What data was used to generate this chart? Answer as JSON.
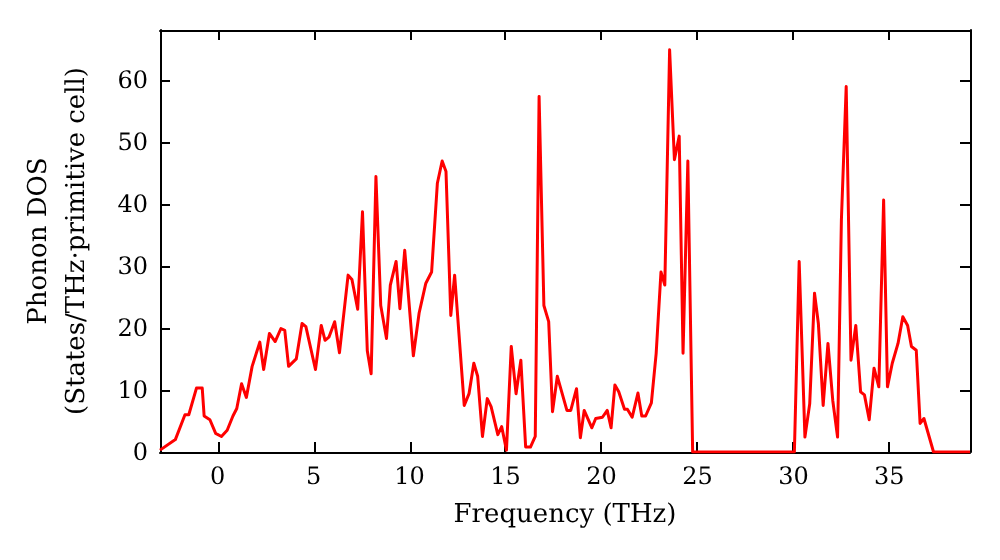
{
  "chart_data": {
    "type": "line",
    "xlabel": "Frequency (THz)",
    "ylabel": "Phonon DOS\n(States/THz·primitive cell)",
    "xlim": [
      -3,
      39.2
    ],
    "xticks": [
      0,
      5,
      10,
      15,
      20,
      25,
      30,
      35
    ],
    "ylim": [
      0,
      68
    ],
    "yticks": [
      0,
      10,
      20,
      30,
      40,
      50,
      60
    ],
    "grid": false,
    "marker": "none",
    "line_style": "solid",
    "series": [
      {
        "color": "#ff0000",
        "x": [
          -3,
          -2.2,
          -1.7,
          -1.5,
          -1.1,
          -0.8,
          -0.7,
          -0.4,
          -0.1,
          0.2,
          0.5,
          0.8,
          1.0,
          1.25,
          1.5,
          1.8,
          2.2,
          2.4,
          2.7,
          3.0,
          3.3,
          3.5,
          3.7,
          4.1,
          4.4,
          4.6,
          5.1,
          5.4,
          5.6,
          5.8,
          6.1,
          6.35,
          6.8,
          7.0,
          7.3,
          7.55,
          7.8,
          8.0,
          8.25,
          8.5,
          8.8,
          9.0,
          9.3,
          9.5,
          9.75,
          10.2,
          10.5,
          10.85,
          11.15,
          11.45,
          11.7,
          11.9,
          12.15,
          12.35,
          12.85,
          13.1,
          13.35,
          13.55,
          13.8,
          14.05,
          14.25,
          14.6,
          14.8,
          15.05,
          15.3,
          15.55,
          15.8,
          16.05,
          16.3,
          16.55,
          16.75,
          17.0,
          17.25,
          17.45,
          17.7,
          18.2,
          18.4,
          18.7,
          18.9,
          19.1,
          19.5,
          19.7,
          20.05,
          20.3,
          20.5,
          20.7,
          20.9,
          21.2,
          21.35,
          21.6,
          21.9,
          22.1,
          22.3,
          22.6,
          22.85,
          23.1,
          23.3,
          23.55,
          23.8,
          24.05,
          24.25,
          24.5,
          24.75,
          30.05,
          30.3,
          30.6,
          30.85,
          31.1,
          31.3,
          31.55,
          31.8,
          32.05,
          32.3,
          32.5,
          32.75,
          33.0,
          33.25,
          33.5,
          33.7,
          33.95,
          34.2,
          34.45,
          34.7,
          34.9,
          35.15,
          35.45,
          35.7,
          35.95,
          36.15,
          36.4,
          36.6,
          36.8,
          37.3,
          39.2
        ],
        "values": [
          0.3,
          2,
          6,
          6,
          10.3,
          10.3,
          5.8,
          5.2,
          3,
          2.5,
          3.5,
          5.8,
          7,
          11,
          8.8,
          13.8,
          17.7,
          13.3,
          19.1,
          17.8,
          19.9,
          19.6,
          13.8,
          15,
          20.7,
          20.2,
          13.3,
          20.4,
          18,
          18.5,
          21,
          16,
          28.5,
          27.8,
          23,
          38.7,
          16.3,
          12.6,
          44.4,
          23.6,
          18.3,
          26.9,
          30.7,
          23.1,
          32.5,
          15.5,
          22.4,
          27.2,
          29,
          43.3,
          46.9,
          45.2,
          22,
          28.5,
          7.5,
          9.4,
          14.3,
          12.2,
          2.5,
          8.6,
          7.3,
          2.8,
          4.1,
          0.3,
          17,
          9.4,
          14.8,
          0.8,
          0.8,
          2.5,
          57.3,
          23.6,
          21,
          6.5,
          12.2,
          6.7,
          6.7,
          10.2,
          2.3,
          6.7,
          3.9,
          5.4,
          5.6,
          6.7,
          3.9,
          10.8,
          9.7,
          6.9,
          6.9,
          5.6,
          9.5,
          5.8,
          5.8,
          7.9,
          15.9,
          29,
          26.9,
          64.8,
          47.1,
          50.9,
          15.9,
          46.9,
          0,
          0,
          30.7,
          2.4,
          7.8,
          25.6,
          20.7,
          7.5,
          17.5,
          8.3,
          2.4,
          37.4,
          58.9,
          14.8,
          20.4,
          9.7,
          9.2,
          5.2,
          13.5,
          10.5,
          40.6,
          10.5,
          14.3,
          17.5,
          21.8,
          20.4,
          17,
          16.4,
          4.6,
          5.4,
          0,
          0
        ]
      }
    ]
  }
}
